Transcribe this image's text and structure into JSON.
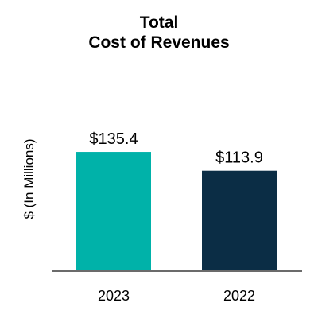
{
  "chart_data": {
    "type": "bar",
    "title": [
      "Total",
      "Cost of Revenues"
    ],
    "ylabel": "$ (In Millions)",
    "xlabel": "",
    "categories": [
      "2023",
      "2022"
    ],
    "values": [
      135.4,
      113.9
    ],
    "value_labels": [
      "$135.4",
      "$113.9"
    ],
    "colors": [
      "#00b2a9",
      "#0b2d45"
    ],
    "ylim": [
      0,
      160
    ],
    "grid": false,
    "legend": "none"
  }
}
